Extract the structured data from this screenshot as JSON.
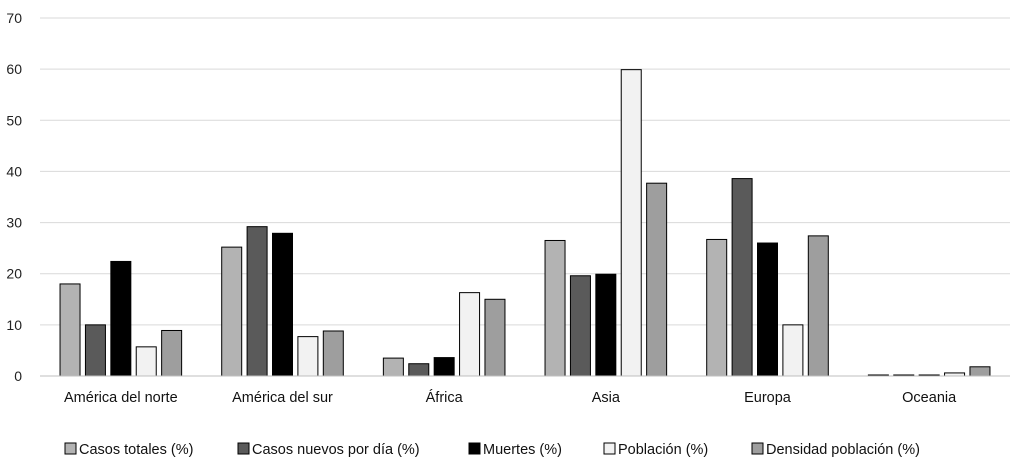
{
  "chart_data": {
    "type": "bar",
    "title": "",
    "xlabel": "",
    "ylabel": "",
    "ylim": [
      0,
      70
    ],
    "yticks": [
      0,
      10,
      20,
      30,
      40,
      50,
      60,
      70
    ],
    "grid": true,
    "legend_position": "bottom",
    "categories": [
      "América del norte",
      "América del sur",
      "África",
      "Asia",
      "Europa",
      "Oceania"
    ],
    "series": [
      {
        "name": "Casos totales (%)",
        "color": "#b3b3b3",
        "values": [
          18,
          25.2,
          3.5,
          26.5,
          26.7,
          0.2
        ]
      },
      {
        "name": "Casos nuevos por día (%)",
        "color": "#5a5a5a",
        "values": [
          10,
          29.2,
          2.4,
          19.6,
          38.6,
          0.2
        ]
      },
      {
        "name": "Muertes (%)",
        "color": "#000000",
        "values": [
          22.4,
          27.9,
          3.6,
          19.9,
          26,
          0.2
        ]
      },
      {
        "name": "Población (%)",
        "color": "#f2f2f2",
        "values": [
          5.7,
          7.7,
          16.3,
          59.9,
          10,
          0.6
        ]
      },
      {
        "name": "Densidad población (%)",
        "color": "#9e9e9e",
        "values": [
          8.9,
          8.8,
          15,
          37.7,
          27.4,
          1.8
        ]
      }
    ]
  }
}
